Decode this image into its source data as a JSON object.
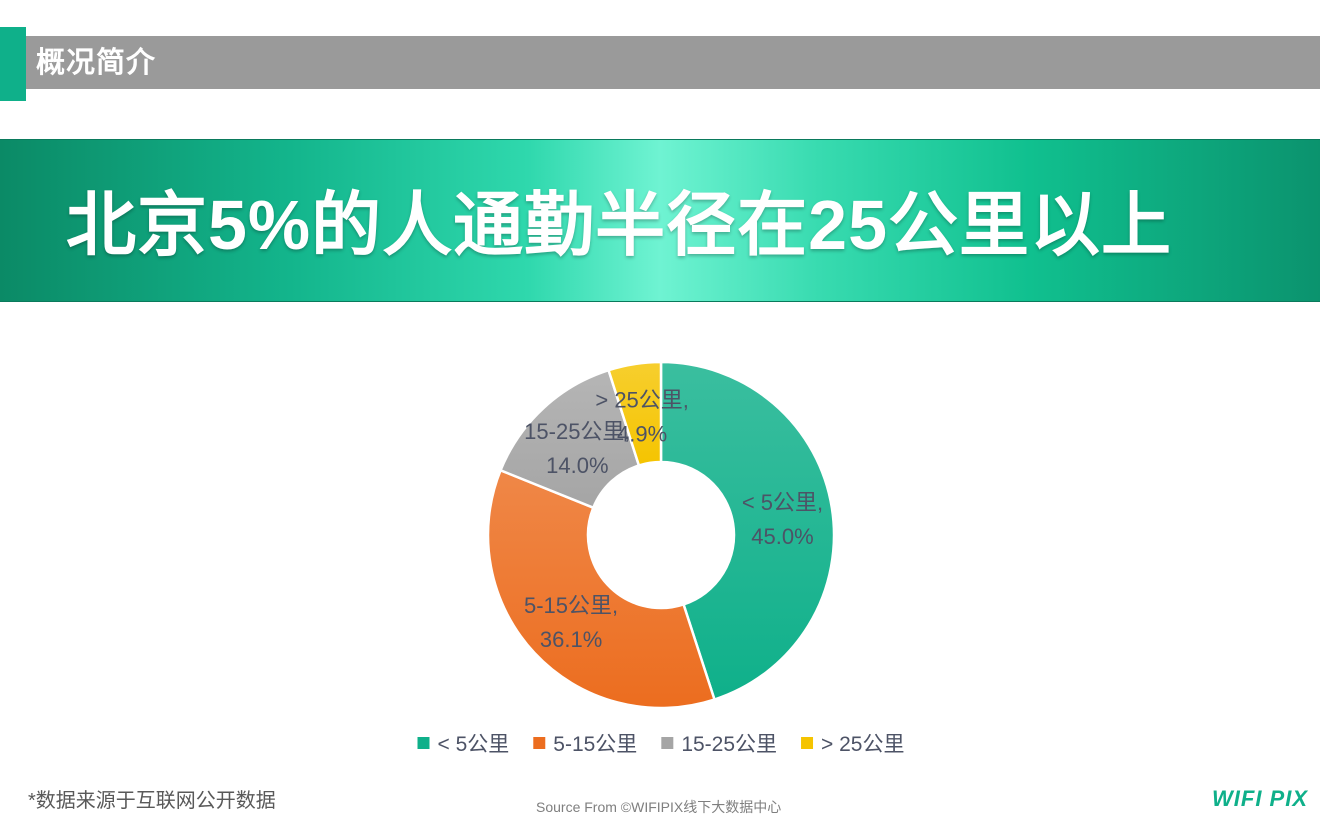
{
  "header": {
    "section_title": "概况简介",
    "banner_title": "北京5%的人通勤半径在25公里以上"
  },
  "colors": {
    "accent": "#0fb08a",
    "section_grey": "#9a9a9a",
    "label_text": "#4d5366"
  },
  "chart_data": {
    "type": "pie",
    "subtype": "donut",
    "categories": [
      "< 5公里",
      "5-15公里",
      "15-25公里",
      "> 25公里"
    ],
    "values": [
      45.0,
      36.1,
      14.0,
      4.9
    ],
    "value_labels": [
      "45.0%",
      "36.1%",
      "14.0%",
      "4.9%"
    ],
    "colors": [
      "#0fb08a",
      "#ec6d1f",
      "#a5a5a5",
      "#f5c400"
    ],
    "legend_position": "bottom",
    "start_angle_deg": 0,
    "direction": "clockwise"
  },
  "footer": {
    "footnote": "*数据来源于互联网公开数据",
    "source": "Source From ©WIFIPIX线下大数据中心",
    "logo": "WIFI PIX"
  }
}
